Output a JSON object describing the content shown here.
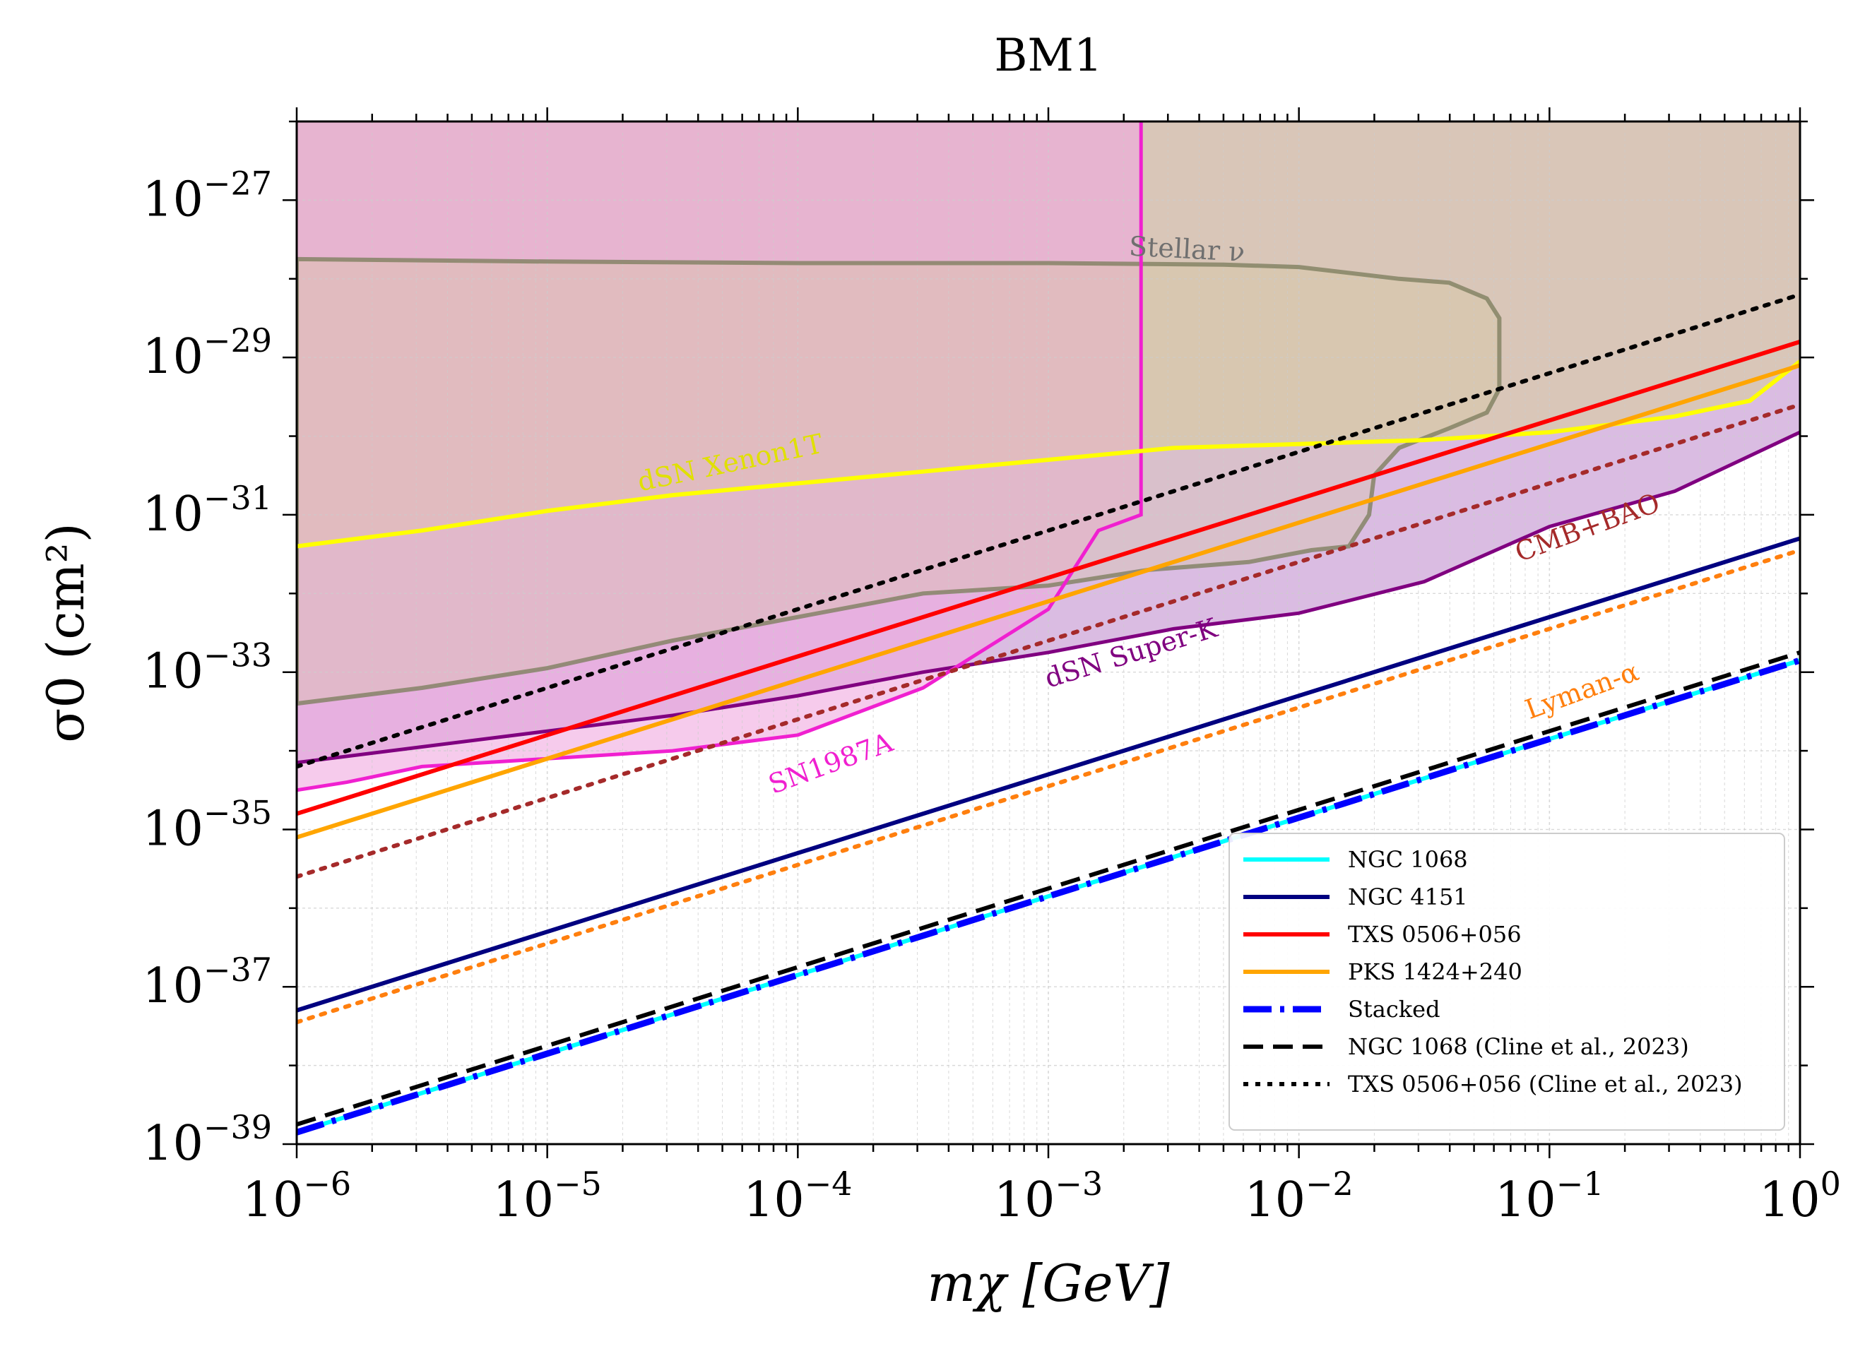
{
  "chart_data": {
    "type": "line",
    "title": "BM1",
    "xlabel": "mχ [GeV]",
    "ylabel": "σ0 (cm²)",
    "xscale": "log",
    "yscale": "log",
    "xlim_log10": [
      -6,
      0
    ],
    "ylim_log10": [
      -39,
      -26
    ],
    "grid": true,
    "x_ticks": [
      {
        "base": "10",
        "exp": "−6"
      },
      {
        "base": "10",
        "exp": "−5"
      },
      {
        "base": "10",
        "exp": "−4"
      },
      {
        "base": "10",
        "exp": "−3"
      },
      {
        "base": "10",
        "exp": "−2"
      },
      {
        "base": "10",
        "exp": "−1"
      },
      {
        "base": "10",
        "exp": "0"
      }
    ],
    "y_ticks": [
      {
        "value_log10": -27,
        "base": "10",
        "exp": "−27"
      },
      {
        "value_log10": -29,
        "base": "10",
        "exp": "−29"
      },
      {
        "value_log10": -31,
        "base": "10",
        "exp": "−31"
      },
      {
        "value_log10": -33,
        "base": "10",
        "exp": "−33"
      },
      {
        "value_log10": -35,
        "base": "10",
        "exp": "−35"
      },
      {
        "value_log10": -37,
        "base": "10",
        "exp": "−37"
      },
      {
        "value_log10": -39,
        "base": "10",
        "exp": "−39"
      }
    ],
    "regions": [
      {
        "name": "Stellar ν",
        "color": "#808060",
        "fill": "#d8c8a0",
        "points_log10": [
          [
            -6,
            -27.75
          ],
          [
            -5,
            -27.78
          ],
          [
            -4,
            -27.8
          ],
          [
            -3,
            -27.8
          ],
          [
            -2.3,
            -27.82
          ],
          [
            -2,
            -27.85
          ],
          [
            -1.6,
            -28.0
          ],
          [
            -1.4,
            -28.05
          ],
          [
            -1.25,
            -28.25
          ],
          [
            -1.2,
            -28.5
          ],
          [
            -1.2,
            -29.4
          ],
          [
            -1.25,
            -29.7
          ],
          [
            -1.4,
            -29.9
          ],
          [
            -1.6,
            -30.15
          ],
          [
            -1.7,
            -30.5
          ],
          [
            -1.72,
            -31.0
          ],
          [
            -1.8,
            -31.4
          ],
          [
            -1.95,
            -31.45
          ],
          [
            -2.2,
            -31.6
          ],
          [
            -2.6,
            -31.7
          ],
          [
            -3,
            -31.9
          ],
          [
            -3.5,
            -32.0
          ],
          [
            -4,
            -32.3
          ],
          [
            -4.5,
            -32.6
          ],
          [
            -5,
            -32.95
          ],
          [
            -5.5,
            -33.2
          ],
          [
            -6,
            -33.4
          ]
        ]
      },
      {
        "name": "SN1987A",
        "color": "#f020d0",
        "fill": "#f0a8e0",
        "vertical_at_log10_x": -2.63,
        "points_log10": [
          [
            -6,
            -34.5
          ],
          [
            -5.8,
            -34.4
          ],
          [
            -5.5,
            -34.2
          ],
          [
            -5,
            -34.1
          ],
          [
            -4.5,
            -34.0
          ],
          [
            -4,
            -33.8
          ],
          [
            -3.5,
            -33.2
          ],
          [
            -3.2,
            -32.6
          ],
          [
            -3,
            -32.2
          ],
          [
            -2.8,
            -31.2
          ],
          [
            -2.63,
            -31.0
          ],
          [
            -2.63,
            -26.0
          ]
        ]
      },
      {
        "name": "dSN Super-K",
        "color": "#800080",
        "fill": "#d8b8e0",
        "points_log10": [
          [
            -6,
            -34.15
          ],
          [
            -5.5,
            -33.95
          ],
          [
            -5,
            -33.75
          ],
          [
            -4.5,
            -33.55
          ],
          [
            -4,
            -33.3
          ],
          [
            -3.5,
            -33.0
          ],
          [
            -3,
            -32.75
          ],
          [
            -2.5,
            -32.45
          ],
          [
            -2,
            -32.25
          ],
          [
            -1.5,
            -31.85
          ],
          [
            -1,
            -31.15
          ],
          [
            -0.5,
            -30.7
          ],
          [
            0,
            -29.95
          ]
        ]
      },
      {
        "name": "dSN Xenon1T",
        "color": "#ffff00",
        "fill": "#d8a0c8",
        "points_log10": [
          [
            -6,
            -31.4
          ],
          [
            -5.5,
            -31.2
          ],
          [
            -5,
            -30.95
          ],
          [
            -4.5,
            -30.75
          ],
          [
            -4,
            -30.6
          ],
          [
            -3.5,
            -30.45
          ],
          [
            -3,
            -30.3
          ],
          [
            -2.5,
            -30.15
          ],
          [
            -2,
            -30.1
          ],
          [
            -1.5,
            -30.05
          ],
          [
            -1,
            -29.95
          ],
          [
            -0.5,
            -29.75
          ],
          [
            -0.2,
            -29.55
          ],
          [
            0,
            -29.05
          ]
        ]
      }
    ],
    "series": [
      {
        "name": "NGC 1068",
        "color": "#00ffff",
        "style": "solid",
        "x_log10": [
          -6,
          0
        ],
        "y_log10": [
          -38.85,
          -32.85
        ]
      },
      {
        "name": "NGC 4151",
        "color": "#000080",
        "style": "solid",
        "x_log10": [
          -6,
          0
        ],
        "y_log10": [
          -37.3,
          -31.3
        ]
      },
      {
        "name": "TXS 0506+056",
        "color": "#ff0000",
        "style": "solid",
        "x_log10": [
          -6,
          0
        ],
        "y_log10": [
          -34.8,
          -28.8
        ]
      },
      {
        "name": "PKS 1424+240",
        "color": "#ffa500",
        "style": "solid",
        "x_log10": [
          -6,
          0
        ],
        "y_log10": [
          -35.1,
          -29.1
        ]
      },
      {
        "name": "Stacked",
        "color": "#0000ff",
        "style": "dashdot",
        "x_log10": [
          -6,
          0
        ],
        "y_log10": [
          -38.85,
          -32.85
        ]
      },
      {
        "name": "NGC 1068 (Cline et al., 2023)",
        "color": "#000000",
        "style": "dashed",
        "x_log10": [
          -6,
          0
        ],
        "y_log10": [
          -38.75,
          -32.75
        ]
      },
      {
        "name": "TXS 0506+056 (Cline et al., 2023)",
        "color": "#000000",
        "style": "dotted",
        "x_log10": [
          -6,
          0
        ],
        "y_log10": [
          -34.2,
          -28.2
        ]
      },
      {
        "name": "CMB+BAO",
        "color": "#a52a2a",
        "style": "dotted",
        "x_log10": [
          -6,
          0
        ],
        "y_log10": [
          -35.6,
          -29.6
        ],
        "in_legend": false
      },
      {
        "name": "Lyman-α",
        "color": "#ff7f0e",
        "style": "dotted",
        "x_log10": [
          -6,
          0
        ],
        "y_log10": [
          -37.45,
          -31.45
        ],
        "in_legend": false
      }
    ],
    "legend": [
      "NGC 1068",
      "NGC 4151",
      "TXS 0506+056",
      "PKS 1424+240",
      "Stacked",
      "NGC 1068 (Cline et al., 2023)",
      "TXS 0506+056 (Cline et al., 2023)"
    ],
    "legend_position": "lower-right",
    "annotations": [
      {
        "text": "Stellar ν",
        "color": "#707070",
        "at_log10": [
          -2.68,
          -27.7
        ],
        "rotate": 3
      },
      {
        "text": "dSN Xenon1T",
        "color": "#e0e000",
        "at_log10": [
          -4.63,
          -30.7
        ],
        "rotate": -12
      },
      {
        "text": "dSN Super-K",
        "color": "#800080",
        "at_log10": [
          -3.0,
          -33.2
        ],
        "rotate": -17
      },
      {
        "text": "SN1987A",
        "color": "#f020d0",
        "at_log10": [
          -4.1,
          -34.55
        ],
        "rotate": -20
      },
      {
        "text": "CMB+BAO",
        "color": "#a52a2a",
        "at_log10": [
          -1.12,
          -31.6
        ],
        "rotate": -20
      },
      {
        "text": "Lyman-α",
        "color": "#ff7f0e",
        "at_log10": [
          -1.08,
          -33.6
        ],
        "rotate": -20
      }
    ]
  }
}
